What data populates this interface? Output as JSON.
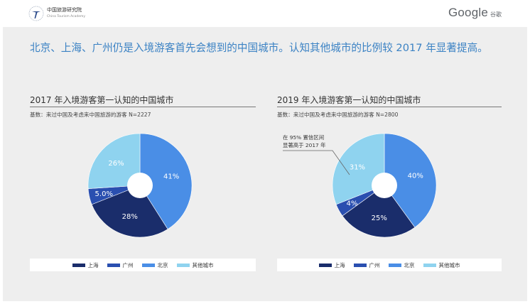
{
  "header": {
    "org_name": "中国旅游研究院",
    "org_name_en": "China Tourism Academy",
    "brand": "Google",
    "brand_cn": "谷歌"
  },
  "headline": "北京、上海、广州仍是入境游客首先会想到的中国城市。认知其他城市的比例较 2017 年显著提高。",
  "colors": {
    "shanghai": "#1a2d6b",
    "guangzhou": "#2a4fb0",
    "beijing": "#4a8ee6",
    "others": "#8fd3ef",
    "slide_bg": "#eeeeee"
  },
  "chart_data": [
    {
      "type": "pie",
      "title": "2017 年入境游客第一认知的中国城市",
      "subtitle": "基数：来过中国及考虑来中国旅游的游客 N=2227",
      "categories": [
        "北京",
        "上海",
        "广州",
        "其他城市"
      ],
      "values": [
        41,
        28,
        5.0,
        26
      ],
      "data_labels": [
        "41%",
        "28%",
        "5.0%",
        "26%"
      ],
      "legend": [
        "上海",
        "广州",
        "北京",
        "其他城市"
      ],
      "legend_placement": "bottom",
      "annotation": ""
    },
    {
      "type": "pie",
      "title": "2019 年入境游客第一认知的中国城市",
      "subtitle": "基数：来过中国及考虑来中国旅游的游客 N=2800",
      "categories": [
        "北京",
        "上海",
        "广州",
        "其他城市"
      ],
      "values": [
        40,
        25,
        4,
        31
      ],
      "data_labels": [
        "40%",
        "25%",
        "4%",
        "31%"
      ],
      "legend": [
        "上海",
        "广州",
        "北京",
        "其他城市"
      ],
      "legend_placement": "bottom",
      "annotation": [
        "在 95% 置信区间",
        "显著高于 2017 年"
      ]
    }
  ]
}
